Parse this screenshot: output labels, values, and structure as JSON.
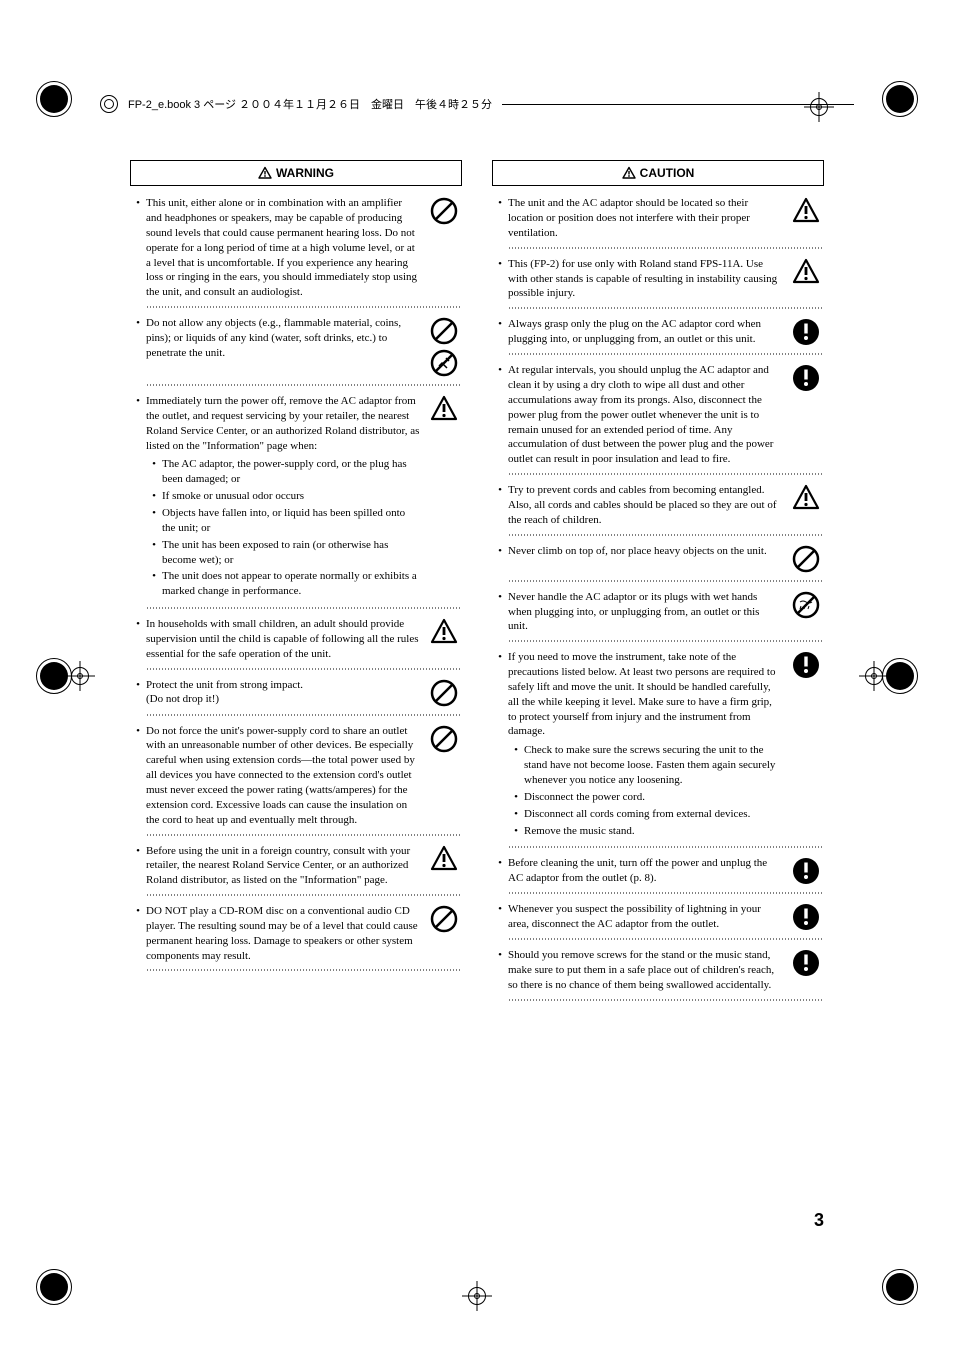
{
  "header": "FP-2_e.book  3 ページ  ２００４年１１月２６日　金曜日　午後４時２５分",
  "page_number": "3",
  "warning_title": "WARNING",
  "caution_title": "CAUTION",
  "warning": [
    {
      "text": "This unit, either alone or in combination with an amplifier and headphones or speakers, may be capable of producing sound levels that could cause permanent hearing loss. Do not operate for a long period of time at a high volume level, or at a level that is uncomfortable. If you experience any hearing loss or ringing in the ears, you should immediately stop using the unit, and consult an audiologist.",
      "icons": [
        "prohibit"
      ]
    },
    {
      "text": "Do not allow any objects (e.g., flammable material, coins, pins); or liquids of any kind (water, soft drinks, etc.) to penetrate the unit.",
      "icons": [
        "prohibit",
        "disassemble"
      ]
    },
    {
      "text": "Immediately turn the power off, remove the AC adaptor from the outlet, and request servicing by your retailer, the nearest Roland Service Center, or an authorized Roland distributor, as listed on the \"Information\" page when:",
      "sub": [
        "The AC adaptor, the power-supply cord, or the plug has been damaged; or",
        "If smoke or unusual odor occurs",
        "Objects have fallen into, or liquid has been spilled onto the unit; or",
        "The unit has been exposed to rain (or otherwise has become wet); or",
        "The unit does not appear to operate normally or exhibits a marked change in performance."
      ],
      "icons": [
        "triangle"
      ]
    },
    {
      "text": "In households with small children, an adult should provide supervision until the child is capable of following all the rules essential for the safe operation of the unit.",
      "icons": [
        "triangle"
      ]
    },
    {
      "text": "Protect the unit from strong impact.\n(Do not drop it!)",
      "icons": [
        "prohibit"
      ]
    },
    {
      "text": "Do not force the unit's power-supply cord to share an outlet with an unreasonable number of other devices. Be especially careful when using extension cords—the total power used by all devices you have connected to the extension cord's outlet must never exceed the power rating (watts/amperes) for the extension cord. Excessive loads can cause the insulation on the cord to heat up and eventually melt through.",
      "icons": [
        "prohibit"
      ]
    },
    {
      "text": "Before using the unit in a foreign country, consult with your retailer, the nearest Roland Service Center, or an authorized Roland distributor, as listed on the \"Information\" page.",
      "icons": [
        "triangle"
      ]
    },
    {
      "text": "DO NOT play a CD-ROM disc on a conventional audio CD player. The resulting sound may be of a level that could cause permanent hearing loss. Damage to speakers or other system components may result.",
      "icons": [
        "prohibit"
      ]
    }
  ],
  "caution": [
    {
      "text": "The unit and the AC adaptor should be located so their location or position does not interfere with their proper ventilation.",
      "icons": [
        "triangle"
      ]
    },
    {
      "text": "This (FP-2) for use only with Roland stand FPS-11A. Use with other stands is capable of resulting in instability causing possible injury.",
      "icons": [
        "triangle"
      ]
    },
    {
      "text": "Always grasp only the plug on the AC adaptor cord when plugging into, or unplugging from, an outlet or this unit.",
      "icons": [
        "mandatory"
      ]
    },
    {
      "text": "At regular intervals, you should unplug the AC adaptor and clean it by using a dry cloth to wipe all dust and other accumulations away from its prongs. Also, disconnect the power plug from the power outlet whenever the unit is to remain unused for an extended period of time. Any accumulation of dust between the power plug and the power outlet can result in poor insulation and lead to fire.",
      "icons": [
        "mandatory"
      ]
    },
    {
      "text": "Try to prevent cords and cables from becoming entangled. Also, all cords and cables should be placed so they are out of the reach of children.",
      "icons": [
        "triangle"
      ]
    },
    {
      "text": "Never climb on top of, nor place heavy objects on the unit.",
      "icons": [
        "prohibit"
      ]
    },
    {
      "text": "Never handle the AC adaptor or its plugs with wet hands when plugging into, or unplugging from, an outlet or this unit.",
      "icons": [
        "wet"
      ]
    },
    {
      "text": "If you need to move the instrument, take note of the precautions listed below. At least two persons are required to safely lift and move the unit. It should be handled carefully, all the while keeping it level. Make sure to have a firm grip, to protect yourself from injury and the instrument from damage.",
      "sub": [
        "Check to make sure the screws securing the unit to the stand have not become loose. Fasten them again securely whenever you notice any loosening.",
        "Disconnect the power cord.",
        "Disconnect all cords coming from external devices.",
        "Remove the music stand."
      ],
      "icons": [
        "mandatory"
      ]
    },
    {
      "text": "Before cleaning the unit, turn off the power and unplug the AC adaptor from the outlet (p. 8).",
      "icons": [
        "mandatory"
      ]
    },
    {
      "text": "Whenever you suspect the possibility of lightning in your area, disconnect the AC adaptor from the outlet.",
      "icons": [
        "mandatory"
      ]
    },
    {
      "text": "Should you remove screws for the stand or the music stand, make sure to put them in a safe place out of children's reach, so there is no chance of them being swallowed accidentally.",
      "icons": [
        "mandatory"
      ]
    }
  ]
}
